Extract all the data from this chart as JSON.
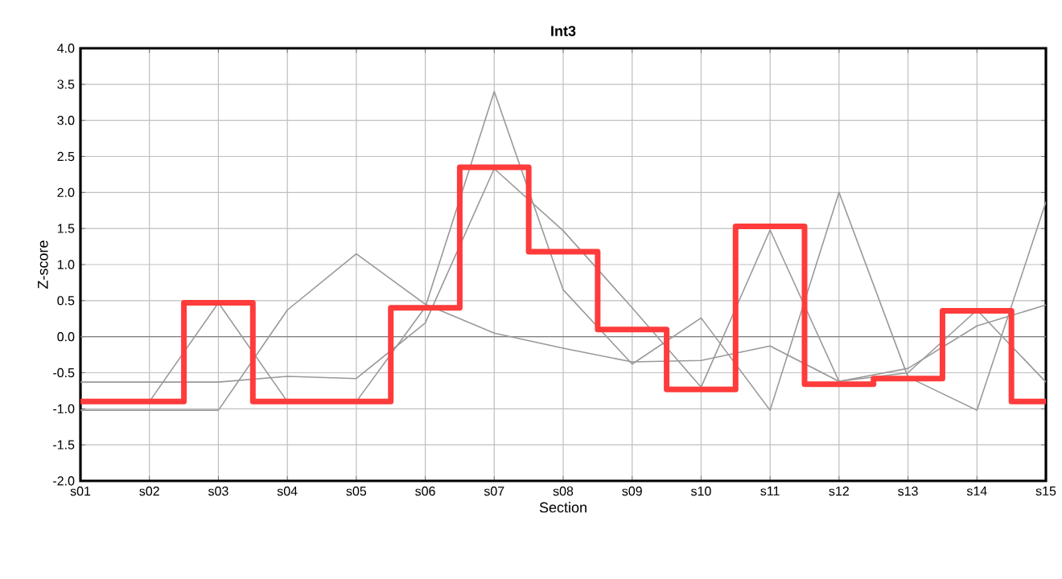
{
  "chart_data": {
    "type": "step",
    "title": "Int3",
    "xlabel": "Section",
    "ylabel": "Z-score",
    "categories": [
      "s01",
      "s02",
      "s03",
      "s04",
      "s05",
      "s06",
      "s07",
      "s08",
      "s09",
      "s10",
      "s11",
      "s12",
      "s13",
      "s14",
      "s15"
    ],
    "ylim": [
      -2.0,
      4.0
    ],
    "yticks": [
      {
        "value": -2.0,
        "label": "-2.0"
      },
      {
        "value": -1.5,
        "label": "-1.5"
      },
      {
        "value": -1.0,
        "label": "-1.0"
      },
      {
        "value": -0.5,
        "label": "-0.5"
      },
      {
        "value": 0.0,
        "label": "0.0"
      },
      {
        "value": 0.5,
        "label": "0.5"
      },
      {
        "value": 1.0,
        "label": "1.0"
      },
      {
        "value": 1.5,
        "label": "1.5"
      },
      {
        "value": 2.0,
        "label": "2.0"
      },
      {
        "value": 2.5,
        "label": "2.5"
      },
      {
        "value": 3.0,
        "label": "3.0"
      },
      {
        "value": 3.5,
        "label": "3.5"
      },
      {
        "value": 4.0,
        "label": "4.0"
      }
    ],
    "grid": true,
    "marker": "none",
    "ref_lines": [
      {
        "axis": "y",
        "value": 0,
        "color": "#808080"
      }
    ],
    "series": [
      {
        "type": "line",
        "color": "#999999",
        "values": [
          -0.63,
          -0.63,
          -0.63,
          -0.55,
          -0.58,
          0.19,
          2.33,
          1.47,
          0.4,
          -0.7,
          1.48,
          -0.62,
          -0.5,
          0.37,
          -0.63
        ]
      },
      {
        "type": "line",
        "color": "#999999",
        "values": [
          -0.9,
          -0.9,
          0.47,
          -0.9,
          -0.9,
          0.41,
          3.4,
          0.65,
          -0.38,
          0.26,
          -1.02,
          2.0,
          -0.56,
          -1.02,
          1.87
        ]
      },
      {
        "type": "line",
        "color": "#999999",
        "values": [
          -1.02,
          -1.02,
          -1.02,
          0.37,
          1.15,
          0.45,
          0.05,
          -0.16,
          -0.35,
          -0.33,
          -0.13,
          -0.62,
          -0.44,
          0.15,
          0.44
        ]
      },
      {
        "color": "#ff3b3b",
        "values": [
          -0.9,
          -0.9,
          0.47,
          -0.9,
          -0.9,
          0.4,
          2.35,
          1.18,
          0.1,
          -0.73,
          1.53,
          -0.66,
          -0.58,
          0.36,
          -0.9
        ]
      }
    ]
  }
}
